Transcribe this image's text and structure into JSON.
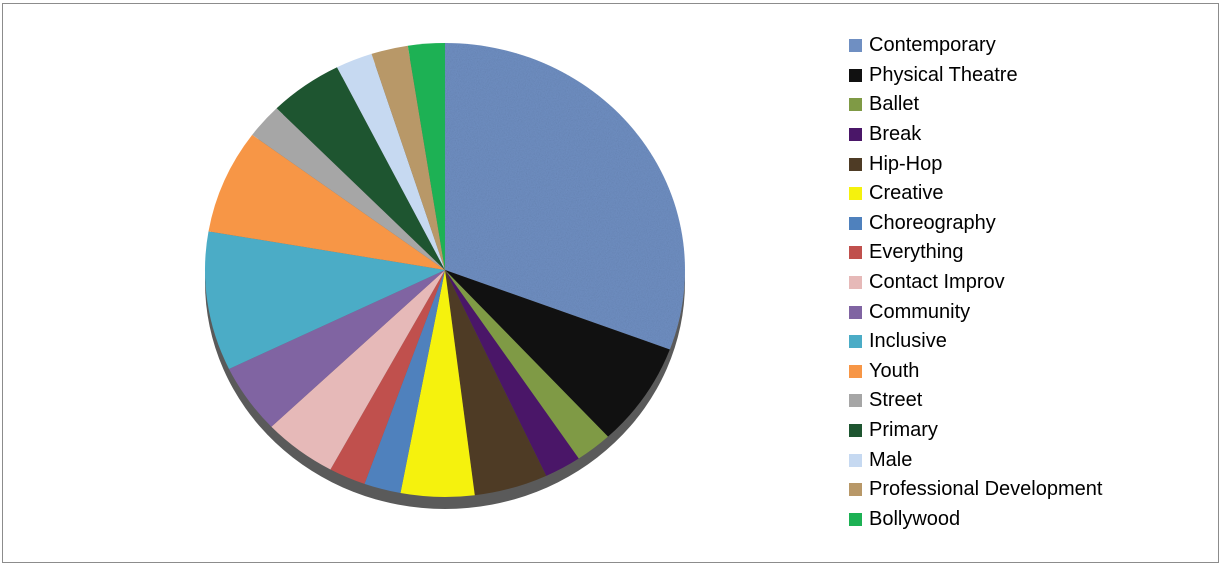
{
  "chart_data": {
    "type": "pie",
    "title": "",
    "legend_position": "right",
    "slices": [
      {
        "label": "Contemporary",
        "value": 31,
        "color": "#6f8fc2"
      },
      {
        "label": "Physical Theatre",
        "value": 7.5,
        "color": "#111111"
      },
      {
        "label": "Ballet",
        "value": 2.5,
        "color": "#7f9a45"
      },
      {
        "label": "Break",
        "value": 2.5,
        "color": "#4a1668"
      },
      {
        "label": "Hip-Hop",
        "value": 5,
        "color": "#4e3b25"
      },
      {
        "label": "Creative",
        "value": 5,
        "color": "#f5f20d"
      },
      {
        "label": "Choreography",
        "value": 2.5,
        "color": "#4f81bd"
      },
      {
        "label": "Everything",
        "value": 2.5,
        "color": "#c0504d"
      },
      {
        "label": "Contact Improv",
        "value": 5,
        "color": "#e6b9b8"
      },
      {
        "label": "Community",
        "value": 5,
        "color": "#8064a2"
      },
      {
        "label": "Inclusive",
        "value": 10,
        "color": "#4bacc6"
      },
      {
        "label": "Youth",
        "value": 7.5,
        "color": "#f79646"
      },
      {
        "label": "Street",
        "value": 2.5,
        "color": "#a6a6a6"
      },
      {
        "label": "Primary",
        "value": 5,
        "color": "#1e5530"
      },
      {
        "label": "Male",
        "value": 2.5,
        "color": "#c6d9f1"
      },
      {
        "label": "Professional Development",
        "value": 2.5,
        "color": "#b89868"
      },
      {
        "label": "Bollywood",
        "value": 2.5,
        "color": "#1db154"
      }
    ]
  }
}
